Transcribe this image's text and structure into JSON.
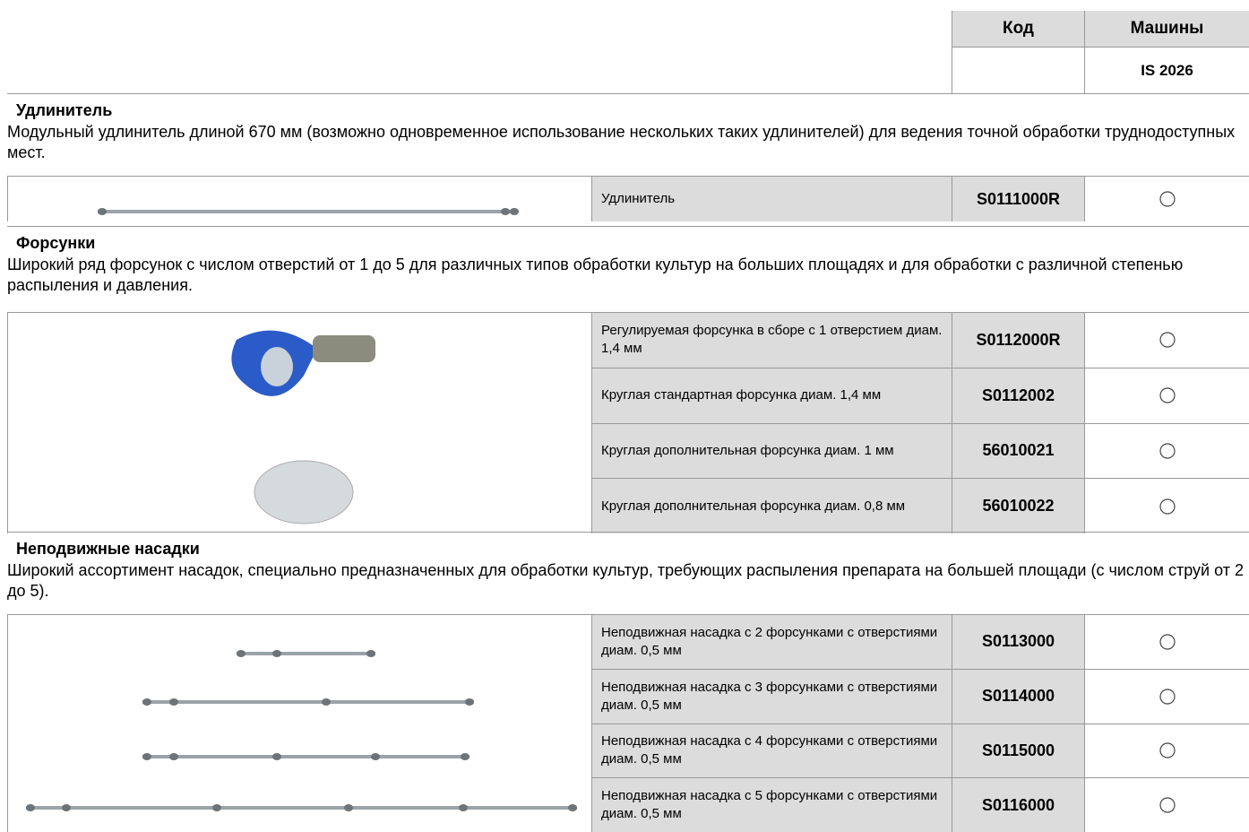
{
  "header": {
    "columns": [
      "Код",
      "Машины"
    ],
    "machine": "IS 2026"
  },
  "sections": [
    {
      "title": "Удлинитель",
      "description": "Модульный удлинитель длиной 670 мм (возможно одновременное использование нескольких таких удлинителей) для ведения точной обработки труднодоступных мест.",
      "items": [
        {
          "name": "Удлинитель",
          "code": "S0111000R"
        }
      ]
    },
    {
      "title": "Форсунки",
      "description": "Широкий ряд форсунок с числом отверстий от 1 до 5 для различных типов обработки культур на больших площадях и для обработки с различной степенью распыления и давления.",
      "items": [
        {
          "name": "Регулируемая форсунка в сборе с 1 отверстием диам. 1,4 мм",
          "code": "S0112000R"
        },
        {
          "name": "Круглая стандартная форсунка диам. 1,4 мм",
          "code": "S0112002"
        },
        {
          "name": "Круглая дополнительная форсунка диам. 1 мм",
          "code": "56010021"
        },
        {
          "name": "Круглая дополнительная форсунка диам. 0,8 мм",
          "code": "56010022"
        }
      ]
    },
    {
      "title": "Неподвижные насадки",
      "description": "Широкий ассортимент насадок, специально предназначенных для обработки культур, требующих распыления препарата на большей площади (с числом струй от 2 до 5).",
      "items": [
        {
          "name": "Неподвижная насадка с 2 форсунками с отверстиями диам. 0,5 мм",
          "code": "S0113000"
        },
        {
          "name": "Неподвижная насадка с 3 форсунками с отверстиями диам. 0,5 мм",
          "code": "S0114000"
        },
        {
          "name": "Неподвижная насадка с 4 форсунками с отверстиями диам. 0,5 мм",
          "code": "S0115000"
        },
        {
          "name": "Неподвижная насадка с 5 форсунками с отверстиями диам. 0,5 мм",
          "code": "S0116000"
        }
      ]
    }
  ]
}
